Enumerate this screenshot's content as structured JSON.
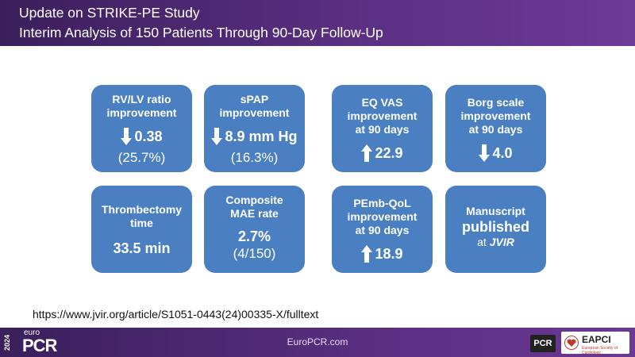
{
  "header": {
    "title": "Update on STRIKE-PE Study",
    "subtitle": "Interim Analysis of 150 Patients Through 90-Day Follow-Up"
  },
  "tiles": {
    "rvlv": {
      "l1": "RV/LV ratio",
      "l2": "improvement",
      "value": "0.38",
      "arrow": "down-arrow-icon",
      "pct": "(25.7%)"
    },
    "spap": {
      "l1": "sPAP",
      "l2": "improvement",
      "value": "8.9 mm Hg",
      "arrow": "down-arrow-icon",
      "pct": "(16.3%)"
    },
    "eqvas": {
      "l1": "EQ VAS",
      "l2": "improvement",
      "l3": "at 90 days",
      "value": "22.9",
      "arrow": "up-arrow-icon"
    },
    "borg": {
      "l1": "Borg scale",
      "l2": "improvement",
      "l3": "at 90 days",
      "value": "4.0",
      "arrow": "down-arrow-icon"
    },
    "thromb": {
      "l1": "Thrombectomy",
      "l2": "time",
      "value": "33.5 min"
    },
    "mae": {
      "l1": "Composite",
      "l2": "MAE rate",
      "value": "2.7%",
      "detail": "(4/150)"
    },
    "pemb": {
      "l1": "PEmb-QoL",
      "l2": "improvement",
      "l3": "at 90 days",
      "value": "18.9",
      "arrow": "up-arrow-icon"
    },
    "manu": {
      "l1": "Manuscript",
      "l2": "published",
      "l3a": "at ",
      "l3b": "JVIR"
    }
  },
  "url": "https://www.jvir.org/article/S1051-0443(24)00335-X/fulltext",
  "footer": {
    "year": "2024",
    "euro": "euro",
    "pcr": "PCR",
    "site": "EuroPCR.com",
    "pcr_logo": "PCR",
    "eapci": "EAPCI",
    "eapci_sub": "European Society of Cardiology"
  },
  "colors": {
    "tile": "#4a7fc1",
    "header": "#5a2f82"
  }
}
